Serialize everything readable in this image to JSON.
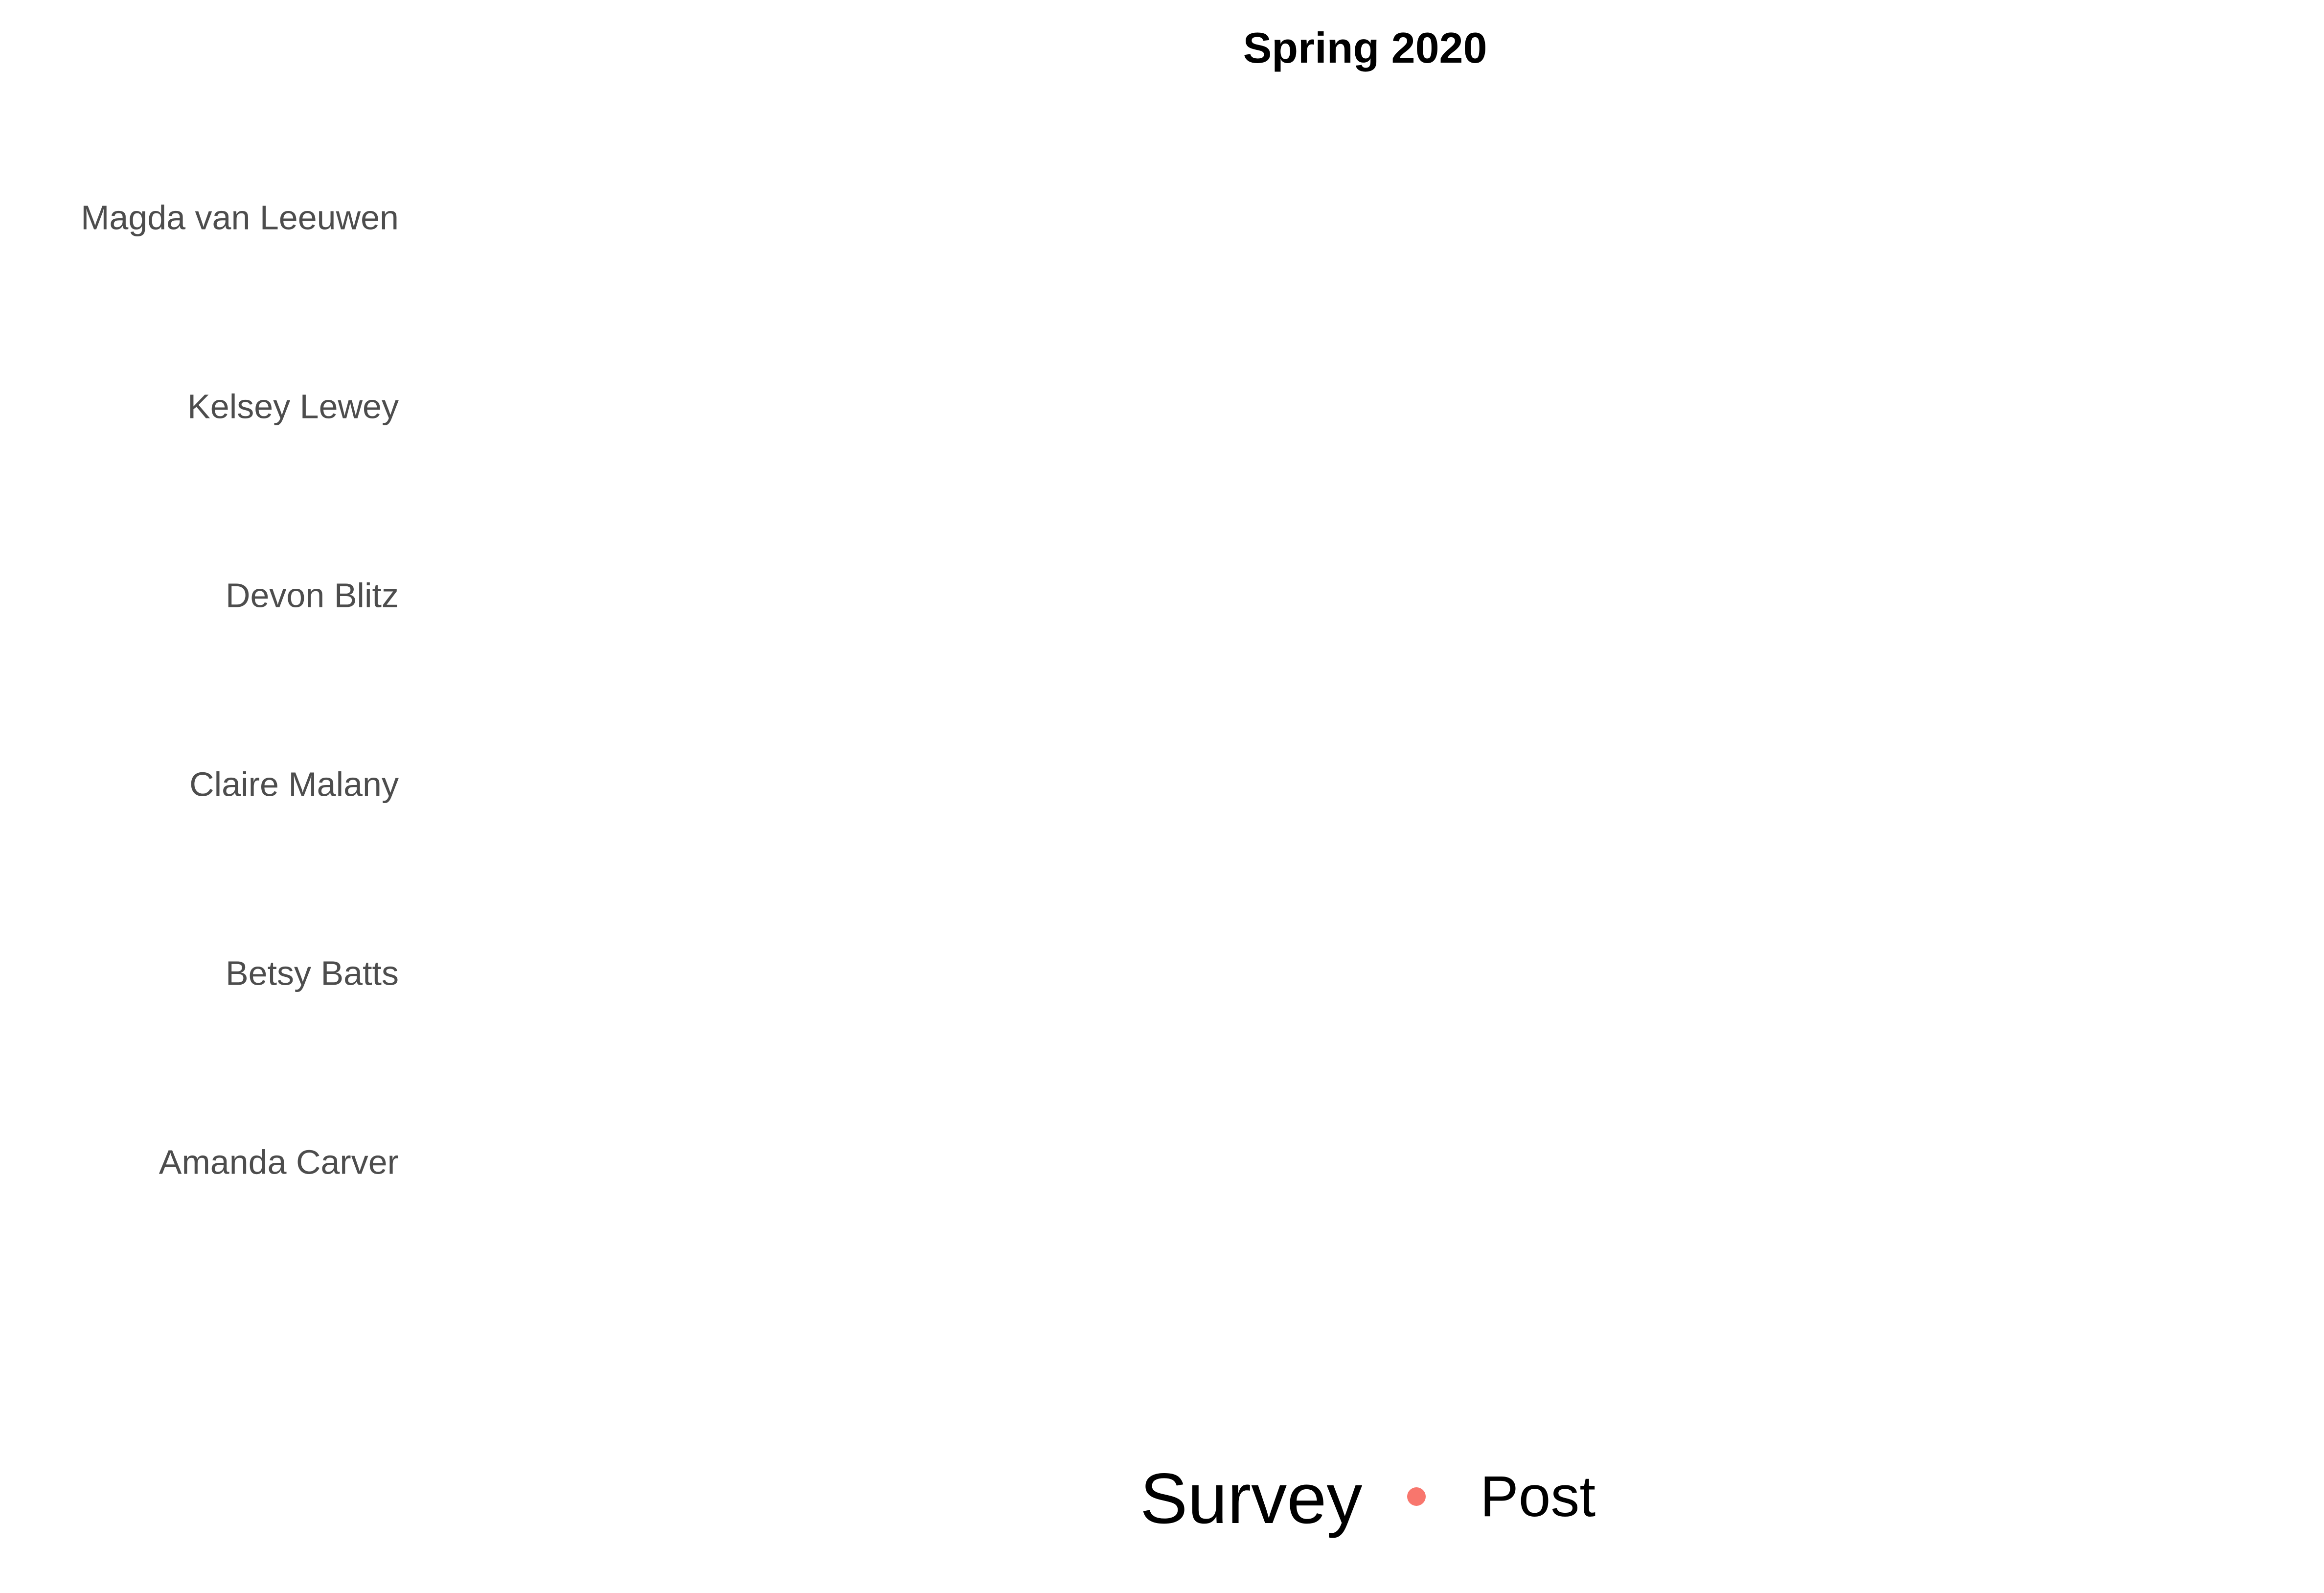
{
  "chart_data": {
    "type": "scatter",
    "title": "Spring 2020",
    "xlabel": "",
    "ylabel": "",
    "categories": [
      "Magda van Leeuwen",
      "Kelsey Lewey",
      "Devon Blitz",
      "Claire Malany",
      "Betsy Batts",
      "Amanda Carver"
    ],
    "series": [
      {
        "name": "Post",
        "color": "#F8766D",
        "values": [
          null,
          null,
          null,
          null,
          null,
          null
        ]
      }
    ],
    "grid": false,
    "legend": {
      "title": "Survey",
      "position": "bottom",
      "items": [
        {
          "label": "Post",
          "color": "#F8766D",
          "marker": "point"
        }
      ]
    }
  }
}
